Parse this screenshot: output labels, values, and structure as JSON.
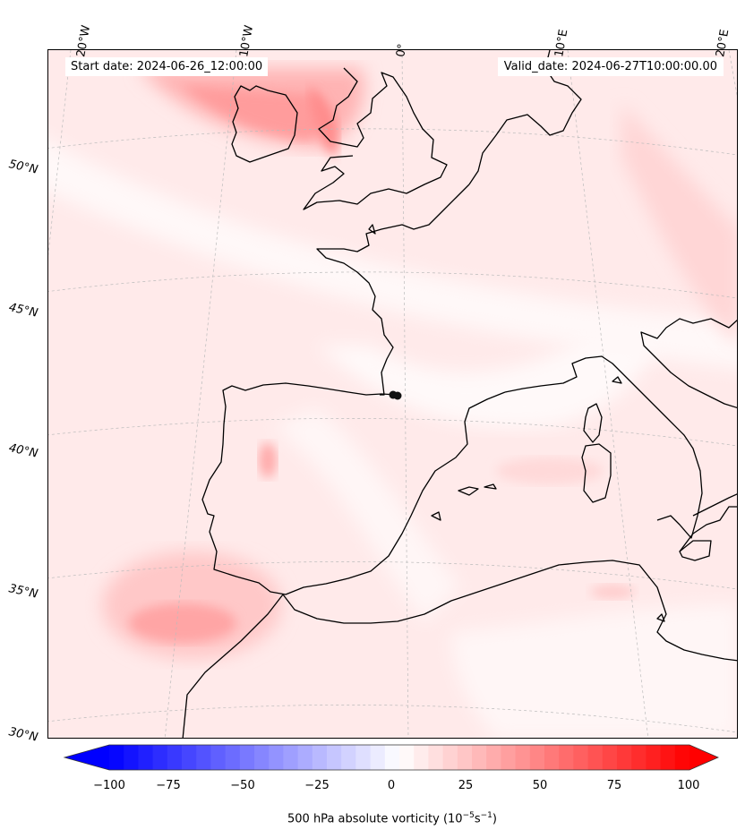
{
  "header": {
    "start_date": "Start date: 2024-06-26_12:00:00",
    "valid_date": "Valid_date: 2024-06-27T10:00:00.00"
  },
  "grid_labels": {
    "longitudes": [
      "20°W",
      "10°W",
      "0°",
      "10°E",
      "20°E"
    ],
    "latitudes": [
      "50°N",
      "45°N",
      "40°N",
      "35°N",
      "30°N"
    ]
  },
  "colorbar": {
    "min": -100,
    "max": 100,
    "ticks": [
      "−100",
      "−75",
      "−50",
      "−25",
      "0",
      "25",
      "50",
      "75",
      "100"
    ],
    "label_main": "500 hPa absolute vorticity (10",
    "label_exp1": "−5",
    "label_mid": "s",
    "label_exp2": "−1",
    "label_end": ")",
    "low_color": "#0000ff",
    "high_color": "#ff0000",
    "extend": "both"
  },
  "map": {
    "field": "500 hPa absolute vorticity",
    "land_outline_color": "#000000",
    "background_color": "#fff2f2",
    "max_anomaly_color": "#ff8080"
  }
}
